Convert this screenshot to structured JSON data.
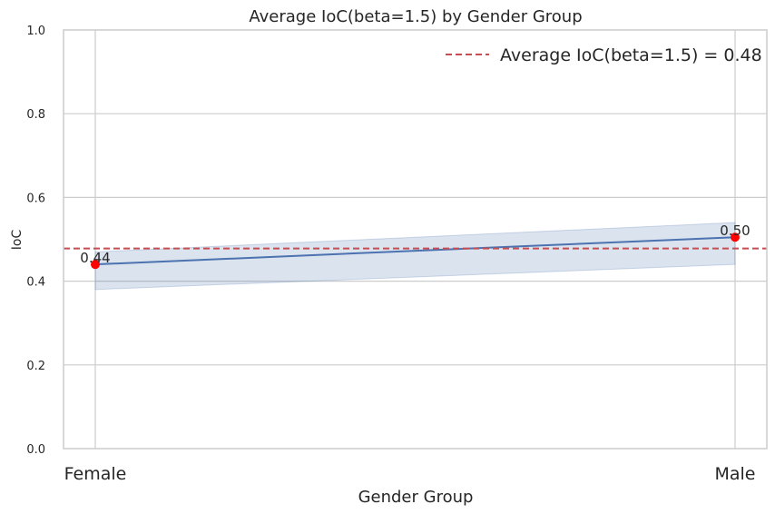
{
  "chart_data": {
    "type": "line",
    "title": "Average IoC(beta=1.5) by Gender Group",
    "xlabel": "Gender Group",
    "ylabel": "IoC",
    "categories": [
      "Female",
      "Male"
    ],
    "series": [
      {
        "values": [
          0.44,
          0.505
        ],
        "ci_lower": [
          0.38,
          0.44
        ],
        "ci_upper": [
          0.47,
          0.54
        ],
        "color": "#4c72b0",
        "marker_color": "#ff0000"
      }
    ],
    "data_labels": [
      "0.44",
      "0.50"
    ],
    "reference_line": {
      "value": 0.478,
      "label": "Average IoC(beta=1.5) = 0.48",
      "color": "#c44e52",
      "style": "dashed"
    },
    "ylim": [
      0,
      1
    ],
    "yticks": [
      "0.0",
      "0.2",
      "0.4",
      "0.6",
      "0.8",
      "1.0"
    ],
    "grid": true,
    "legend_position": "top-right"
  }
}
